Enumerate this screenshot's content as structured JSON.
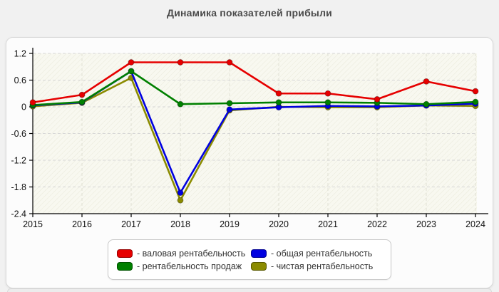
{
  "page": {
    "title": "Динамика показателей прибыли"
  },
  "chart_data": {
    "type": "line",
    "title": "Динамика показателей прибыли",
    "x": [
      2015,
      2016,
      2017,
      2018,
      2019,
      2020,
      2021,
      2022,
      2023,
      2024
    ],
    "x_tick_labels": [
      "2015",
      "2016",
      "2017",
      "2018",
      "2019",
      "2020",
      "2021",
      "2022",
      "2023",
      "2024"
    ],
    "series": [
      {
        "name": "валовая рентабельность",
        "color": "#e60000",
        "values": [
          0.1,
          0.27,
          1.0,
          1.0,
          1.0,
          0.3,
          0.3,
          0.17,
          0.57,
          0.35
        ]
      },
      {
        "name": "общая рентабельность",
        "color": "#0000e0",
        "values": [
          0.03,
          0.1,
          0.8,
          -1.93,
          -0.06,
          -0.01,
          0.02,
          0.01,
          0.03,
          0.07
        ]
      },
      {
        "name": "рентабельность продаж",
        "color": "#008000",
        "values": [
          0.04,
          0.11,
          0.8,
          0.06,
          0.08,
          0.1,
          0.1,
          0.09,
          0.06,
          0.11
        ]
      },
      {
        "name": "чистая рентабельность",
        "color": "#8b8b00",
        "values": [
          0.01,
          0.09,
          0.65,
          -2.1,
          -0.08,
          0.0,
          -0.01,
          -0.01,
          0.03,
          0.02
        ]
      }
    ],
    "ylim": [
      -2.4,
      1.2
    ],
    "yticks": [
      1.2,
      0.6,
      0,
      -0.6,
      -1.2,
      -1.8,
      -2.4
    ],
    "y_tick_labels": [
      "1.2",
      "0.6",
      "0",
      "-0.6",
      "-1.2",
      "-1.8",
      "-2.4"
    ],
    "grid": true,
    "grid_style": "dashed",
    "plot_background": "#f8f8f0",
    "legend_position": "bottom",
    "legend": [
      {
        "label": "- валовая рентабельность",
        "color": "#e60000"
      },
      {
        "label": "- общая рентабельность",
        "color": "#0000e0"
      },
      {
        "label": "- рентабельность продаж",
        "color": "#008000"
      },
      {
        "label": "- чистая рентабельность",
        "color": "#8b8b00"
      }
    ]
  }
}
